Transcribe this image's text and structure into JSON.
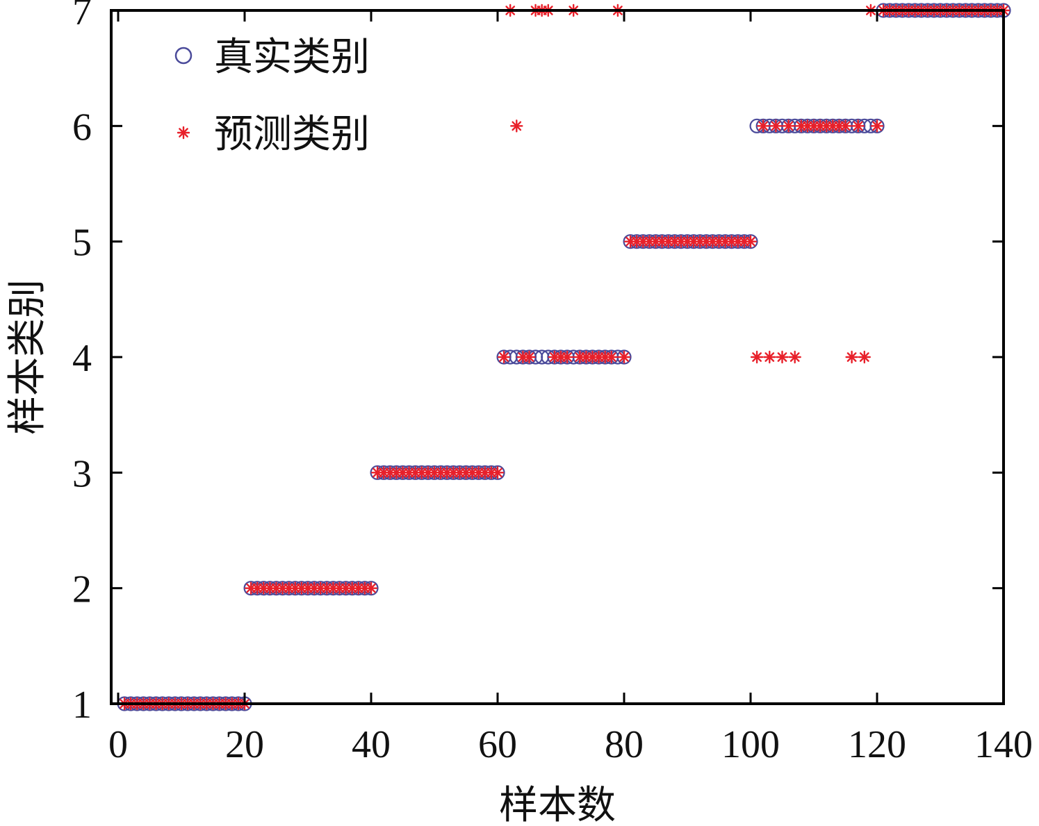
{
  "chart_data": {
    "type": "scatter",
    "xlabel": "样本数",
    "ylabel": "样本类别",
    "xlim": [
      0,
      140
    ],
    "ylim": [
      1,
      7
    ],
    "xticks": [
      "0",
      "20",
      "40",
      "60",
      "80",
      "100",
      "120",
      "140"
    ],
    "yticks": [
      "1",
      "2",
      "3",
      "4",
      "5",
      "6",
      "7"
    ],
    "grid": false,
    "legend_position": "top-left",
    "series": [
      {
        "name": "真实类别",
        "marker": "circle",
        "color": "#4a4a9a",
        "x_range": [
          1,
          140
        ],
        "class_blocks": [
          {
            "from": 1,
            "to": 20,
            "class": 1
          },
          {
            "from": 21,
            "to": 40,
            "class": 2
          },
          {
            "from": 41,
            "to": 60,
            "class": 3
          },
          {
            "from": 61,
            "to": 80,
            "class": 4
          },
          {
            "from": 81,
            "to": 100,
            "class": 5
          },
          {
            "from": 101,
            "to": 120,
            "class": 6
          },
          {
            "from": 121,
            "to": 140,
            "class": 7
          }
        ]
      },
      {
        "name": "预测类别",
        "marker": "asterisk",
        "color": "#e8202a",
        "x_range": [
          1,
          140
        ],
        "base": "true_class",
        "overrides": [
          {
            "x": 62,
            "class": 7
          },
          {
            "x": 63,
            "class": 6
          },
          {
            "x": 66,
            "class": 7
          },
          {
            "x": 67,
            "class": 7
          },
          {
            "x": 68,
            "class": 7
          },
          {
            "x": 72,
            "class": 7
          },
          {
            "x": 79,
            "class": 7
          },
          {
            "x": 101,
            "class": 4
          },
          {
            "x": 103,
            "class": 4
          },
          {
            "x": 105,
            "class": 4
          },
          {
            "x": 107,
            "class": 4
          },
          {
            "x": 116,
            "class": 4
          },
          {
            "x": 118,
            "class": 4
          },
          {
            "x": 119,
            "class": 7
          }
        ]
      }
    ]
  }
}
